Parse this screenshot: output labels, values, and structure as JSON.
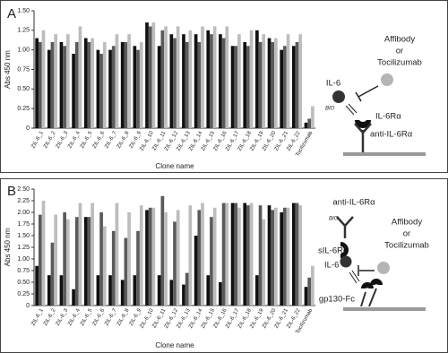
{
  "chart_data": [
    {
      "type": "bar",
      "panel_label": "A",
      "y_label": "Abs 450 nm",
      "x_label": "Clone name",
      "categories": [
        "ZIL-6_1",
        "ZIL-6_2",
        "ZIL-6_3",
        "ZIL-6_4",
        "ZIL-6_5",
        "ZIL-6_6",
        "ZIL-6_7",
        "ZIL-6_8",
        "ZIL-6_9",
        "ZIL-6_10",
        "ZIL-6_11",
        "ZIL-6_12",
        "ZIL-6_13",
        "ZIL-6_14",
        "ZIL-6_15",
        "ZIL-6_16",
        "ZIL-6_17",
        "ZIL-6_18",
        "ZIL-6_19",
        "ZIL-6_20",
        "ZIL-6_21",
        "ZIL-6_22",
        "Tocilizumab"
      ],
      "series": [
        {
          "color": "#111111",
          "values": [
            1.15,
            1.0,
            1.1,
            0.95,
            1.15,
            1.0,
            1.0,
            1.1,
            1.05,
            1.35,
            1.05,
            1.2,
            1.2,
            1.2,
            1.25,
            1.2,
            1.05,
            1.1,
            1.25,
            1.15,
            1.0,
            1.05,
            0.07
          ]
        },
        {
          "color": "#5a5a5a",
          "values": [
            1.1,
            1.1,
            1.05,
            1.1,
            1.1,
            0.95,
            1.05,
            1.1,
            1.0,
            1.3,
            1.25,
            1.15,
            1.1,
            1.1,
            1.2,
            1.15,
            1.05,
            1.05,
            1.1,
            1.1,
            1.05,
            1.1,
            0.12
          ]
        },
        {
          "color": "#bdbdbd",
          "values": [
            1.25,
            1.2,
            1.2,
            1.3,
            1.15,
            1.1,
            1.2,
            1.2,
            1.1,
            1.35,
            1.3,
            1.3,
            1.25,
            1.3,
            1.3,
            1.3,
            1.2,
            1.25,
            1.2,
            1.15,
            1.2,
            1.2,
            0.28
          ]
        }
      ],
      "ylim": [
        0,
        1.5
      ],
      "yticks": [
        0,
        0.25,
        {
          "value": 0.5,
          "label": "0.50"
        },
        0.75,
        {
          "value": 1,
          "label": "1.00"
        },
        1.25,
        {
          "value": 1.5,
          "label": "1.50"
        }
      ]
    },
    {
      "type": "bar",
      "panel_label": "B",
      "y_label": "Abs 450 nm",
      "x_label": "Clone name",
      "categories": [
        "ZIL-6_1",
        "ZIL-6_2",
        "ZIL-6_3",
        "ZIL-6_4",
        "ZIL-6_5",
        "ZIL-6_6",
        "ZIL-6_7",
        "ZIL-6_8",
        "ZIL-6_9",
        "ZIL-6_10",
        "ZIL-6_11",
        "ZIL-6_12",
        "ZIL-6_13",
        "ZIL-6_14",
        "ZIL-6_15",
        "ZIL-6_16",
        "ZIL-6_17",
        "ZIL-6_18",
        "ZIL-6_19",
        "ZIL-6_20",
        "ZIL-6_21",
        "ZIL-6_22",
        "Tocilizumab"
      ],
      "series": [
        {
          "color": "#111111",
          "values": [
            0.85,
            0.65,
            0.65,
            0.35,
            1.9,
            0.65,
            0.65,
            0.55,
            0.65,
            2.05,
            0.65,
            0.55,
            0.45,
            1.5,
            0.65,
            0.5,
            2.2,
            2.2,
            0.65,
            2.15,
            2.0,
            2.2,
            0.4
          ]
        },
        {
          "color": "#5a5a5a",
          "values": [
            1.95,
            1.35,
            2.0,
            1.9,
            1.9,
            2.0,
            1.6,
            1.45,
            1.6,
            2.1,
            2.35,
            1.8,
            0.7,
            2.05,
            1.9,
            2.2,
            2.2,
            2.15,
            2.15,
            2.05,
            2.1,
            2.2,
            0.6
          ]
        },
        {
          "color": "#bdbdbd",
          "values": [
            2.25,
            1.95,
            1.85,
            2.2,
            2.2,
            1.7,
            2.2,
            2.0,
            2.15,
            2.1,
            2.0,
            2.05,
            2.15,
            2.2,
            2.1,
            2.2,
            2.1,
            2.2,
            1.85,
            2.1,
            2.1,
            2.15,
            0.85
          ]
        }
      ],
      "ylim": [
        0,
        2.5
      ],
      "yticks": [
        0,
        0.25,
        {
          "value": 0.5,
          "label": "0.50"
        },
        0.75,
        {
          "value": 1,
          "label": "1.00"
        },
        1.25,
        {
          "value": 1.5,
          "label": "1.50"
        },
        1.75,
        {
          "value": 2,
          "label": "2.00"
        },
        2.25,
        {
          "value": 2.5,
          "label": "2.50"
        }
      ]
    }
  ],
  "diagrams": [
    {
      "affibody": "Affibody",
      "or": "or",
      "tocilizumab": "Tocilizumab",
      "il6": "IL-6",
      "bio": "BIO",
      "receptor": "IL-6Rα",
      "antibody": "anti-IL-6Rα"
    },
    {
      "antibody": "anti-IL-6Rα",
      "bio": "BIO",
      "affibody": "Affibody",
      "or": "or",
      "tocilizumab": "Tocilizumab",
      "receptor": "sIL-6Rα",
      "il6": "IL-6",
      "gp130": "gp130-Fc"
    }
  ]
}
